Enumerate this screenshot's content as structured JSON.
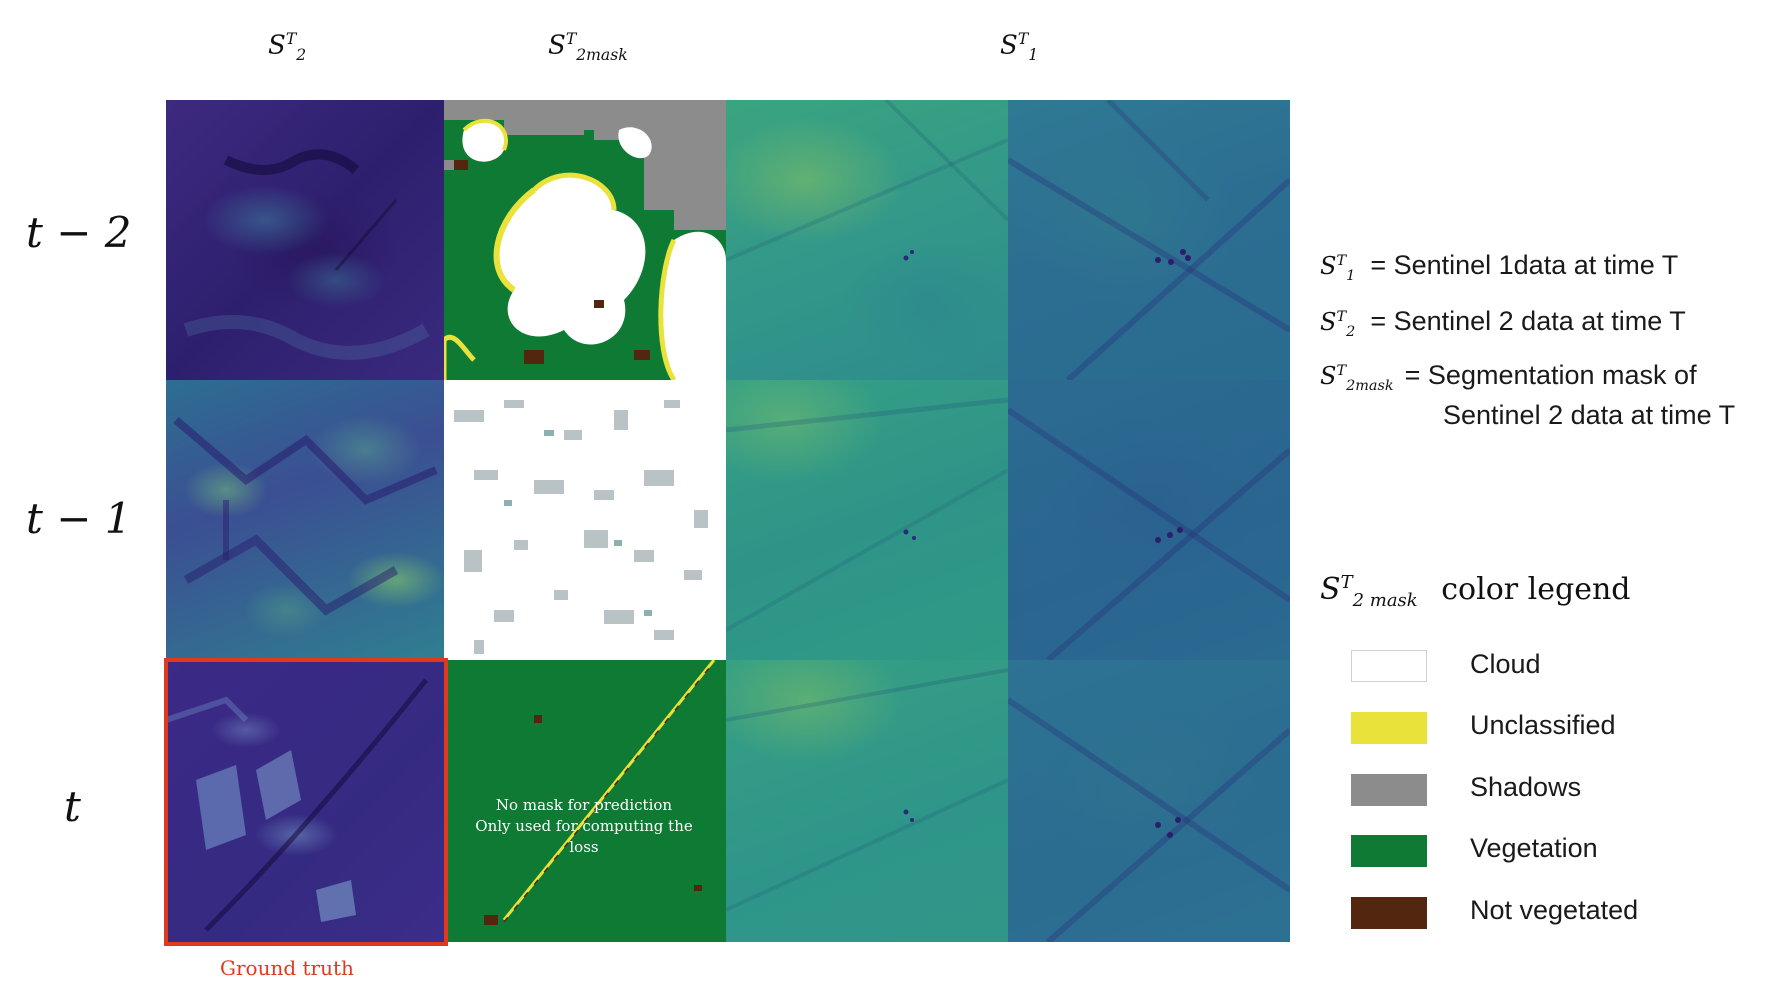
{
  "column_headers": [
    {
      "base": "S",
      "sub": "2",
      "sup": "T"
    },
    {
      "base": "S",
      "sub": "2mask",
      "sup": "T"
    },
    {
      "base": "S",
      "sub": "1",
      "sup": "T"
    }
  ],
  "row_labels": [
    "t − 2",
    "t − 1",
    "t"
  ],
  "ground_truth_label": "Ground truth",
  "mask_note": [
    "No mask for prediction",
    "Only used for computing the loss"
  ],
  "definitions": [
    {
      "base": "S",
      "sub": "1",
      "sup": "T",
      "text": "= Sentinel 1data at time T"
    },
    {
      "base": "S",
      "sub": "2",
      "sup": "T",
      "text": "= Sentinel 2 data at time T"
    },
    {
      "base": "S",
      "sub": "2mask",
      "sup": "T",
      "text": "= Segmentation mask of",
      "text2": "Sentinel 2 data at time T"
    }
  ],
  "legend": {
    "title_sym": {
      "base": "S",
      "sub": "2 mask",
      "sup": "T"
    },
    "title_text": "color legend",
    "items": [
      {
        "label": "Cloud",
        "color": "#ffffff"
      },
      {
        "label": "Unclassified",
        "color": "#e8e23a"
      },
      {
        "label": "Shadows",
        "color": "#8c8c8c"
      },
      {
        "label": "Vegetation",
        "color": "#0f7a34"
      },
      {
        "label": "Not vegetated",
        "color": "#52260f"
      }
    ]
  },
  "colors": {
    "ground_truth_frame": "#e03a1e",
    "vegetation": "#0f7a34",
    "cloud": "#ffffff",
    "unclassified": "#e8e23a",
    "shadows": "#8c8c8c",
    "not_vegetated": "#52260f"
  }
}
